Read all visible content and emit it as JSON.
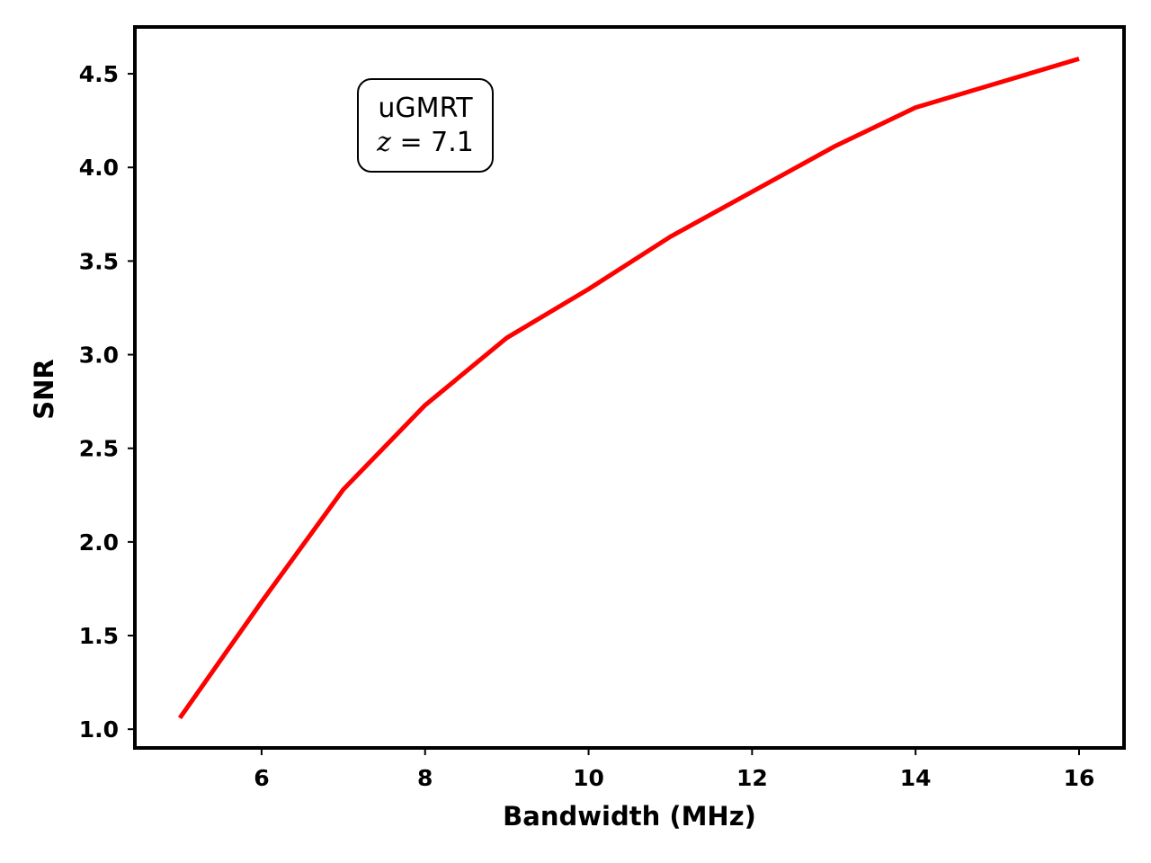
{
  "chart_data": {
    "type": "line",
    "title": "",
    "xlabel": "Bandwidth (MHz)",
    "ylabel": "SNR",
    "xlim": [
      4.45,
      16.55
    ],
    "ylim": [
      0.9,
      4.75
    ],
    "xticks": [
      6,
      8,
      10,
      12,
      14,
      16
    ],
    "xtick_labels": [
      "6",
      "8",
      "10",
      "12",
      "14",
      "16"
    ],
    "yticks": [
      1.0,
      1.5,
      2.0,
      2.5,
      3.0,
      3.5,
      4.0,
      4.5
    ],
    "ytick_labels": [
      "1.0",
      "1.5",
      "2.0",
      "2.5",
      "3.0",
      "3.5",
      "4.0",
      "4.5"
    ],
    "grid": false,
    "legend": null,
    "series": [
      {
        "color": "#ff0000",
        "x": [
          5,
          6,
          7,
          8,
          9,
          10,
          11,
          12,
          13,
          14,
          15,
          16
        ],
        "y": [
          1.06,
          1.68,
          2.28,
          2.73,
          3.09,
          3.35,
          3.63,
          3.87,
          4.11,
          4.32,
          4.45,
          4.58
        ]
      }
    ],
    "annotation": {
      "line1": "uGMRT",
      "line2_var": "z",
      "line2_eq": " = 7.1",
      "position": "upper-left"
    }
  }
}
